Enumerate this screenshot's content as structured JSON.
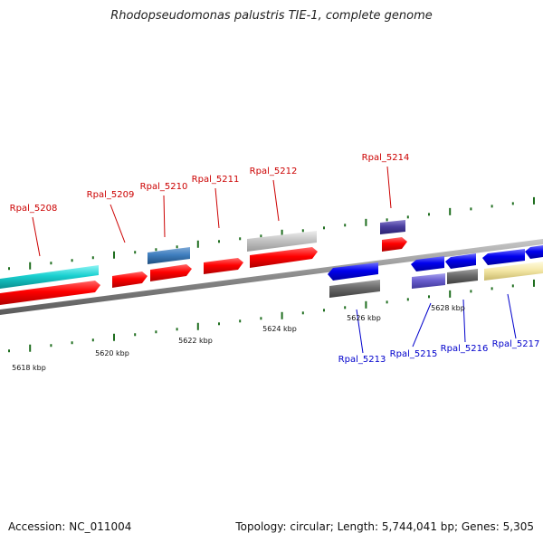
{
  "title": "Rhodopseudomonas palustris TIE-1, complete genome",
  "footer": {
    "accession": "Accession: NC_011004",
    "summary": "Topology: circular; Length: 5,744,041 bp; Genes: 5,305"
  },
  "colors": {
    "label_top": "#cc0000",
    "label_bottom": "#0000cc",
    "backbone": "#888888",
    "tick": "#1f6e1f",
    "gene_colors": [
      "cyan",
      "red",
      "steelblue",
      "lightgray",
      "slateblue",
      "blue",
      "dimgray",
      "lightyellow"
    ]
  },
  "axis_labels": [
    "5618 kbp",
    "5620 kbp",
    "5622 kbp",
    "5624 kbp",
    "5626 kbp",
    "5628 kbp"
  ],
  "gene_labels_top": [
    "Rpal_5208",
    "Rpal_5209",
    "Rpal_5210",
    "Rpal_5211",
    "Rpal_5212",
    "Rpal_5214"
  ],
  "gene_labels_bottom": [
    "Rpal_5213",
    "Rpal_5215",
    "Rpal_5216",
    "Rpal_5217"
  ]
}
